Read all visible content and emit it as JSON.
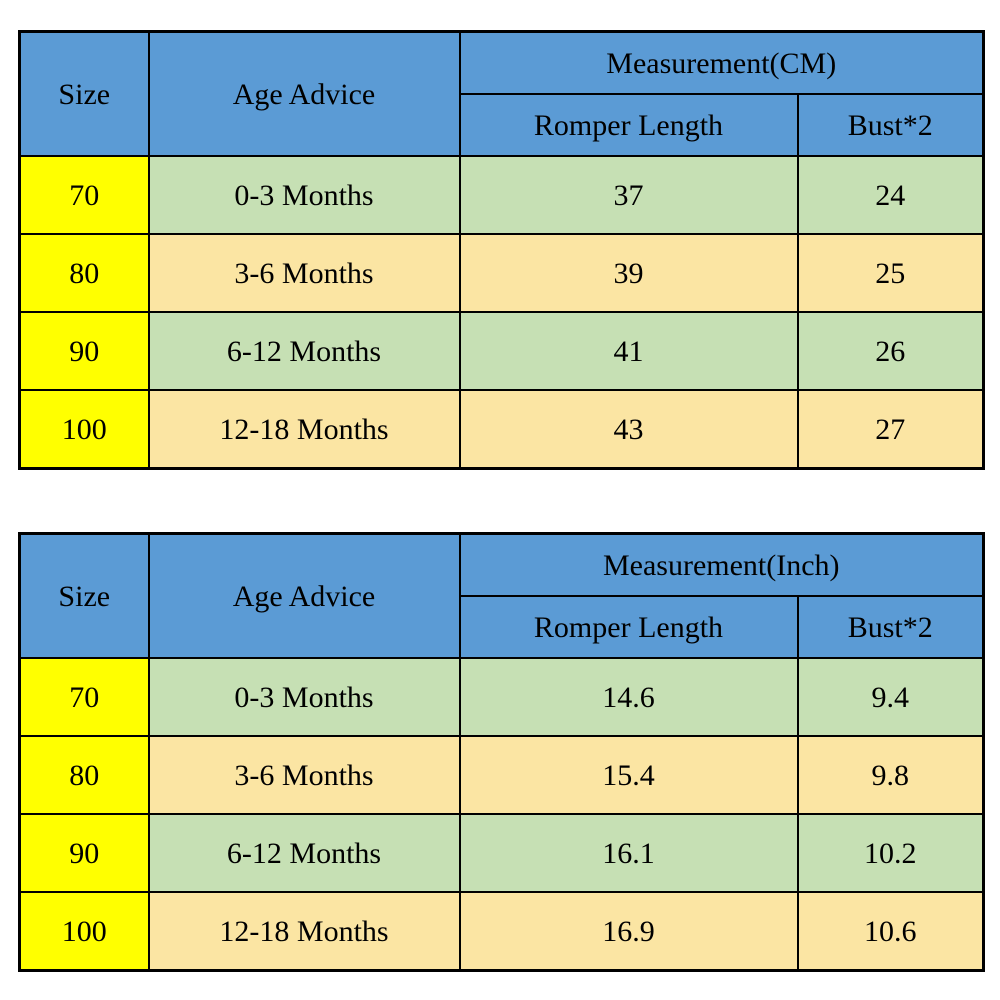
{
  "colors": {
    "header_bg": "#5b9bd5",
    "size_column_bg": "#ffff00",
    "row_green_bg": "#c6e0b4",
    "row_tan_bg": "#fbe5a3",
    "border": "#000000",
    "text": "#000000",
    "page_bg": "#ffffff"
  },
  "chart_data": [
    {
      "type": "table",
      "title": "Measurement(CM)",
      "header": {
        "size": "Size",
        "age": "Age Advice",
        "measurement": "Measurement(CM)",
        "romper": "Romper Length",
        "bust": "Bust*2"
      },
      "rows": [
        {
          "size": "70",
          "age": "0-3 Months",
          "romper_length": "37",
          "bust2": "24"
        },
        {
          "size": "80",
          "age": "3-6 Months",
          "romper_length": "39",
          "bust2": "25"
        },
        {
          "size": "90",
          "age": "6-12 Months",
          "romper_length": "41",
          "bust2": "26"
        },
        {
          "size": "100",
          "age": "12-18 Months",
          "romper_length": "43",
          "bust2": "27"
        }
      ]
    },
    {
      "type": "table",
      "title": "Measurement(Inch)",
      "header": {
        "size": "Size",
        "age": "Age Advice",
        "measurement": "Measurement(Inch)",
        "romper": "Romper Length",
        "bust": "Bust*2"
      },
      "rows": [
        {
          "size": "70",
          "age": "0-3 Months",
          "romper_length": "14.6",
          "bust2": "9.4"
        },
        {
          "size": "80",
          "age": "3-6 Months",
          "romper_length": "15.4",
          "bust2": "9.8"
        },
        {
          "size": "90",
          "age": "6-12 Months",
          "romper_length": "16.1",
          "bust2": "10.2"
        },
        {
          "size": "100",
          "age": "12-18 Months",
          "romper_length": "16.9",
          "bust2": "10.6"
        }
      ]
    }
  ]
}
